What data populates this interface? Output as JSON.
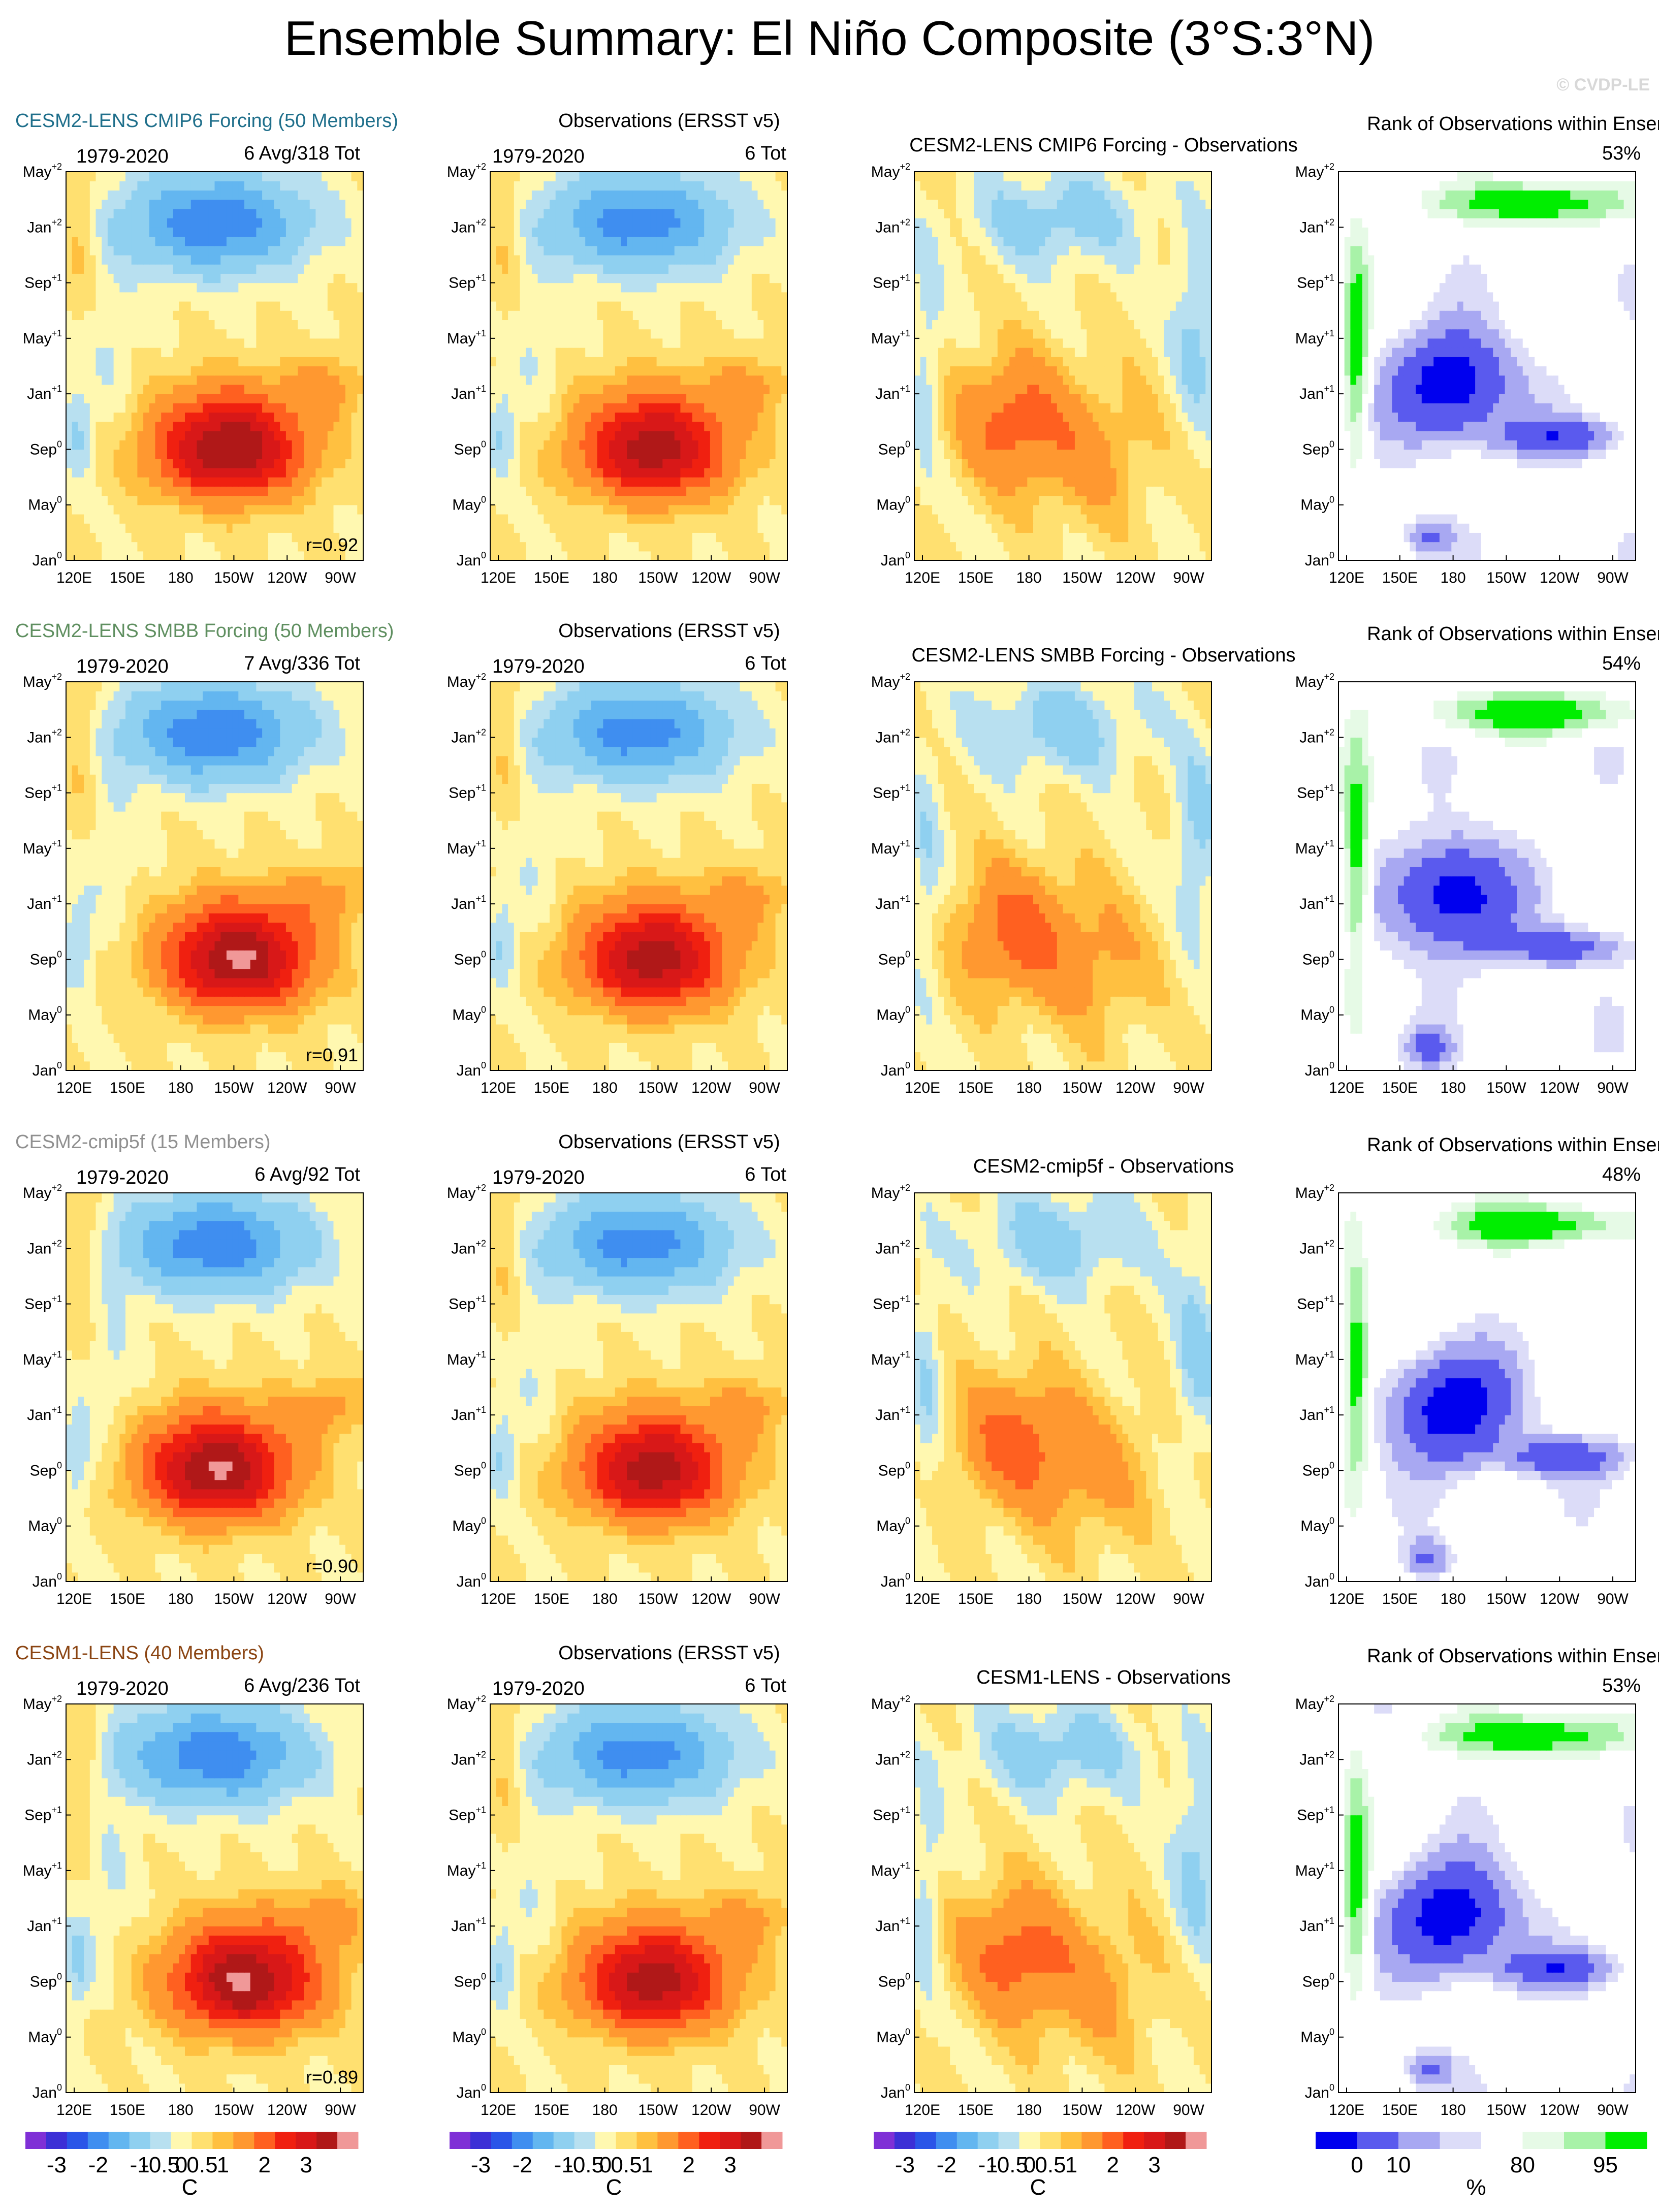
{
  "title": "Ensemble Summary: El Niño Composite (3°S:3°N)",
  "watermark": "© CVDP-LE",
  "colors": {
    "title_row1": "#1f6f8b",
    "title_row2": "#5f8f60",
    "title_row3": "#909090",
    "title_row4": "#8b4513",
    "frame": "#000000"
  },
  "common": {
    "year_range": "1979-2020",
    "obs_title": "Observations (ERSST v5)",
    "rank_title": "Rank of Observations within Ensemble",
    "obs_count": "6 Tot"
  },
  "axes": {
    "x_ticks": [
      "120E",
      "150E",
      "180",
      "150W",
      "120W",
      "90W"
    ],
    "y_ticks": [
      {
        "month": "Jan",
        "sup": "0"
      },
      {
        "month": "May",
        "sup": "0"
      },
      {
        "month": "Sep",
        "sup": "0"
      },
      {
        "month": "Jan",
        "sup": "+1"
      },
      {
        "month": "May",
        "sup": "+1"
      },
      {
        "month": "Sep",
        "sup": "+1"
      },
      {
        "month": "Jan",
        "sup": "+2"
      },
      {
        "month": "May",
        "sup": "+2"
      }
    ]
  },
  "rows": [
    {
      "ensemble": "CESM2-LENS CMIP6 Forcing (50 Members)",
      "count": "6 Avg/318 Tot",
      "r": "r=0.92",
      "diff_title": "CESM2-LENS CMIP6 Forcing - Observations",
      "rank_pct": "53%"
    },
    {
      "ensemble": "CESM2-LENS SMBB Forcing (50 Members)",
      "count": "7 Avg/336 Tot",
      "r": "r=0.91",
      "diff_title": "CESM2-LENS SMBB Forcing - Observations",
      "rank_pct": "54%"
    },
    {
      "ensemble": "CESM2-cmip5f (15 Members)",
      "count": "6 Avg/92 Tot",
      "r": "r=0.90",
      "diff_title": "CESM2-cmip5f - Observations",
      "rank_pct": "48%"
    },
    {
      "ensemble": "CESM1-LENS (40 Members)",
      "count": "6 Avg/236 Tot",
      "r": "r=0.89",
      "diff_title": "CESM1-LENS - Observations",
      "rank_pct": "53%"
    }
  ],
  "chart_data": {
    "type": "heatmap",
    "title": "Ensemble Summary: El Niño Composite (3°S:3°N)",
    "x_axis": "longitude",
    "y_axis": "month relative to El Niño year",
    "xlim": [
      "120E",
      "80W"
    ],
    "ylim": [
      "Jan0",
      "May+2"
    ],
    "sst_colorbar": {
      "unit": "C",
      "labels": [
        "-3",
        "-2",
        "-1",
        "-0.5",
        "0",
        "0.5",
        "1",
        "2",
        "3"
      ],
      "colors": [
        "#7f2fd6",
        "#3c2fd6",
        "#2a55e8",
        "#3f8ef0",
        "#63b6f0",
        "#8fd0f0",
        "#b8e0f0",
        "#fff8b0",
        "#ffe070",
        "#ffc040",
        "#ff9830",
        "#ff6020",
        "#f02010",
        "#d81818",
        "#b01818",
        "#f09898"
      ]
    },
    "rank_colorbar": {
      "unit": "%",
      "labels": [
        "0",
        "10",
        "80",
        "95"
      ],
      "colors": [
        "#0000ee",
        "#5a5aee",
        "#a8a8f2",
        "#dcdcf8",
        "#ffffff",
        "#e6fae6",
        "#a8f2a8",
        "#00ee00"
      ]
    },
    "pattern_correlations": [
      0.92,
      0.91,
      0.9,
      0.89
    ],
    "observation_rank_percent": [
      53,
      54,
      48,
      53
    ]
  }
}
